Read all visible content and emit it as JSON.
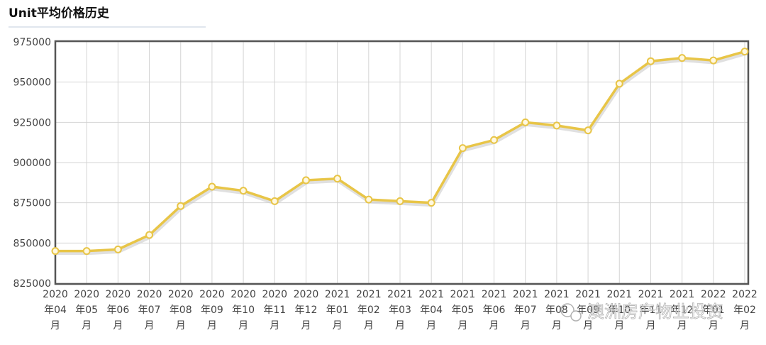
{
  "chart_data": {
    "type": "line",
    "title": "Unit平均价格历史",
    "categories": [
      "2020年04月",
      "2020年05月",
      "2020年06月",
      "2020年07月",
      "2020年08月",
      "2020年09月",
      "2020年10月",
      "2020年11月",
      "2020年12月",
      "2021年01月",
      "2021年02月",
      "2021年03月",
      "2021年04月",
      "2021年05月",
      "2021年06月",
      "2021年07月",
      "2021年08月",
      "2021年09月",
      "2021年10月",
      "2021年11月",
      "2021年12月",
      "2022年01月",
      "2022年02月"
    ],
    "values": [
      845000,
      845000,
      846000,
      855000,
      873000,
      885000,
      882500,
      876000,
      889000,
      890000,
      877000,
      876000,
      875000,
      909000,
      914000,
      925000,
      923000,
      920000,
      949000,
      963000,
      965000,
      963500,
      969000
    ],
    "color": "#e8c547",
    "ylim": [
      825000,
      975000
    ],
    "yticks": [
      825000,
      850000,
      875000,
      900000,
      925000,
      950000,
      975000
    ],
    "grid": true,
    "watermark": "澳洲房产物业投资"
  }
}
